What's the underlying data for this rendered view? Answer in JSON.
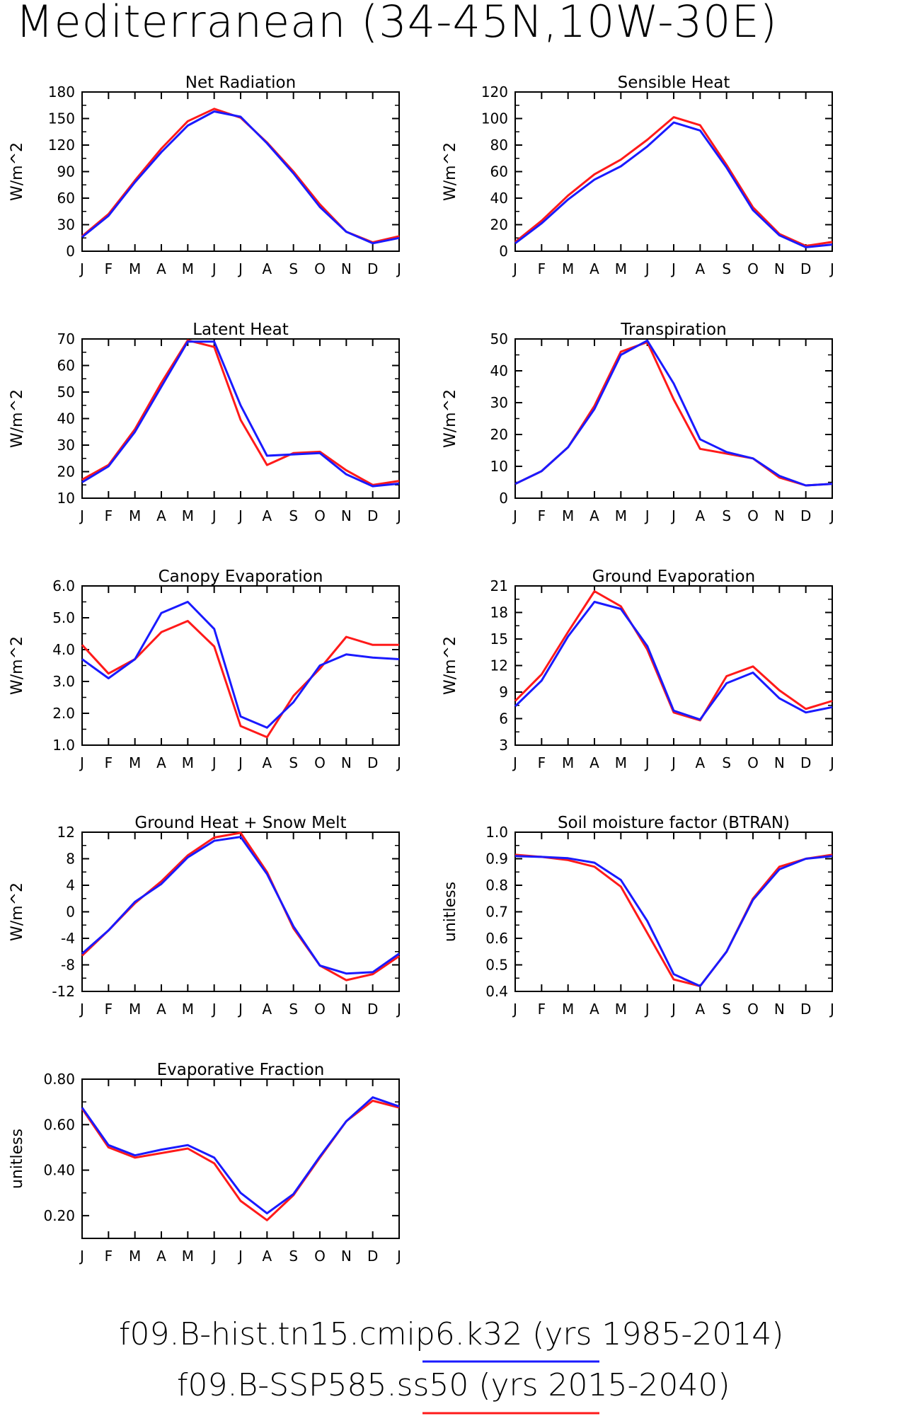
{
  "title": "Mediterranean (34-45N,10W-30E)",
  "months": [
    "J",
    "F",
    "M",
    "A",
    "M",
    "J",
    "J",
    "A",
    "S",
    "O",
    "N",
    "D",
    "J"
  ],
  "colors": {
    "hist": "#1a1aff",
    "ssp": "#ff1a1a"
  },
  "legend": [
    {
      "label": "f09.B-hist.tn15.cmip6.k32 (yrs 1985-2014)",
      "color": "#1a1aff"
    },
    {
      "label": "f09.B-SSP585.ss50 (yrs 2015-2040)",
      "color": "#ff1a1a"
    }
  ],
  "chart_data": [
    {
      "type": "line",
      "title": "Net Radiation",
      "ylabel": "W/m^2",
      "ylim": [
        0,
        180
      ],
      "yticks": [
        0,
        30,
        60,
        90,
        120,
        150,
        180
      ],
      "ydecimals": 0,
      "series": [
        {
          "name": "f09.B-hist.tn15.cmip6.k32 (yrs 1985-2014)",
          "key": "hist",
          "values": [
            16,
            40,
            78,
            112,
            142,
            158,
            152,
            122,
            88,
            50,
            22,
            9,
            15
          ]
        },
        {
          "name": "f09.B-SSP585.ss50 (yrs 2015-2040)",
          "key": "ssp",
          "values": [
            17,
            42,
            80,
            116,
            147,
            161,
            151,
            123,
            90,
            53,
            22,
            10,
            17
          ]
        }
      ]
    },
    {
      "type": "line",
      "title": "Sensible Heat",
      "ylabel": "W/m^2",
      "ylim": [
        0,
        120
      ],
      "yticks": [
        0,
        20,
        40,
        60,
        80,
        100,
        120
      ],
      "ydecimals": 0,
      "series": [
        {
          "name": "f09.B-hist.tn15.cmip6.k32 (yrs 1985-2014)",
          "key": "hist",
          "values": [
            6,
            21,
            39,
            54,
            64,
            79,
            97,
            91,
            63,
            31,
            12,
            3,
            5
          ]
        },
        {
          "name": "f09.B-SSP585.ss50 (yrs 2015-2040)",
          "key": "ssp",
          "values": [
            7,
            23,
            42,
            58,
            69,
            84,
            101,
            95,
            65,
            33,
            13,
            4,
            7
          ]
        }
      ]
    },
    {
      "type": "line",
      "title": "Latent Heat",
      "ylabel": "W/m^2",
      "ylim": [
        10,
        70
      ],
      "yticks": [
        10,
        20,
        30,
        40,
        50,
        60,
        70
      ],
      "ydecimals": 0,
      "series": [
        {
          "name": "f09.B-hist.tn15.cmip6.k32 (yrs 1985-2014)",
          "key": "hist",
          "values": [
            16,
            22,
            35,
            52,
            69,
            69,
            45,
            26,
            26.5,
            27,
            19,
            14.5,
            15.5
          ]
        },
        {
          "name": "f09.B-SSP585.ss50 (yrs 2015-2040)",
          "key": "ssp",
          "values": [
            17,
            22.5,
            36,
            53.5,
            69.5,
            67,
            39.5,
            22.5,
            27,
            27.5,
            20.5,
            15,
            16.5
          ]
        }
      ]
    },
    {
      "type": "line",
      "title": "Transpiration",
      "ylabel": "W/m^2",
      "ylim": [
        0,
        50
      ],
      "yticks": [
        0,
        10,
        20,
        30,
        40,
        50
      ],
      "ydecimals": 0,
      "series": [
        {
          "name": "f09.B-hist.tn15.cmip6.k32 (yrs 1985-2014)",
          "key": "hist",
          "values": [
            4.5,
            8.5,
            16,
            28,
            45,
            49.5,
            36,
            18.5,
            14.5,
            12.5,
            7,
            4,
            4.5
          ]
        },
        {
          "name": "f09.B-SSP585.ss50 (yrs 2015-2040)",
          "key": "ssp",
          "values": [
            4.5,
            8.5,
            16,
            29,
            46,
            49,
            31,
            15.5,
            14,
            12.5,
            6.5,
            4,
            4.5
          ]
        }
      ]
    },
    {
      "type": "line",
      "title": "Canopy Evaporation",
      "ylabel": "W/m^2",
      "ylim": [
        1.0,
        6.0
      ],
      "yticks": [
        1.0,
        2.0,
        3.0,
        4.0,
        5.0,
        6.0
      ],
      "ydecimals": 1,
      "series": [
        {
          "name": "f09.B-hist.tn15.cmip6.k32 (yrs 1985-2014)",
          "key": "hist",
          "values": [
            3.7,
            3.1,
            3.7,
            5.15,
            5.5,
            4.65,
            1.9,
            1.55,
            2.35,
            3.5,
            3.85,
            3.75,
            3.7
          ]
        },
        {
          "name": "f09.B-SSP585.ss50 (yrs 2015-2040)",
          "key": "ssp",
          "values": [
            4.15,
            3.25,
            3.7,
            4.55,
            4.9,
            4.1,
            1.6,
            1.25,
            2.55,
            3.4,
            4.4,
            4.15,
            4.15
          ]
        }
      ]
    },
    {
      "type": "line",
      "title": "Ground Evaporation",
      "ylabel": "W/m^2",
      "ylim": [
        3,
        21
      ],
      "yticks": [
        3,
        6,
        9,
        12,
        15,
        18,
        21
      ],
      "ydecimals": 0,
      "series": [
        {
          "name": "f09.B-hist.tn15.cmip6.k32 (yrs 1985-2014)",
          "key": "hist",
          "values": [
            7.4,
            10.3,
            15.3,
            19.2,
            18.4,
            14.2,
            6.9,
            5.9,
            10,
            11.2,
            8.3,
            6.7,
            7.3
          ]
        },
        {
          "name": "f09.B-SSP585.ss50 (yrs 2015-2040)",
          "key": "ssp",
          "values": [
            8,
            11,
            15.8,
            20.4,
            18.7,
            13.8,
            6.7,
            5.8,
            10.8,
            11.9,
            9.2,
            7.1,
            8
          ]
        }
      ]
    },
    {
      "type": "line",
      "title": "Ground Heat + Snow Melt",
      "ylabel": "W/m^2",
      "ylim": [
        -12,
        12
      ],
      "yticks": [
        -12,
        -8,
        -4,
        0,
        4,
        8,
        12
      ],
      "ydecimals": 0,
      "series": [
        {
          "name": "f09.B-hist.tn15.cmip6.k32 (yrs 1985-2014)",
          "key": "hist",
          "values": [
            -6.3,
            -2.8,
            1.5,
            4.2,
            8.2,
            10.7,
            11.3,
            5.7,
            -2.2,
            -8.1,
            -9.3,
            -9.1,
            -6.3
          ]
        },
        {
          "name": "f09.B-SSP585.ss50 (yrs 2015-2040)",
          "key": "ssp",
          "values": [
            -6.6,
            -2.8,
            1.3,
            4.6,
            8.5,
            11.2,
            11.9,
            6,
            -2.5,
            -8.1,
            -10.3,
            -9.4,
            -6.7
          ]
        }
      ]
    },
    {
      "type": "line",
      "title": "Soil moisture factor (BTRAN)",
      "ylabel": "unitless",
      "ylim": [
        0.4,
        1.0
      ],
      "yticks": [
        0.4,
        0.5,
        0.6,
        0.7,
        0.8,
        0.9,
        1.0
      ],
      "ydecimals": 1,
      "series": [
        {
          "name": "f09.B-hist.tn15.cmip6.k32 (yrs 1985-2014)",
          "key": "hist",
          "values": [
            0.91,
            0.907,
            0.902,
            0.885,
            0.82,
            0.665,
            0.465,
            0.42,
            0.55,
            0.745,
            0.86,
            0.9,
            0.91
          ]
        },
        {
          "name": "f09.B-SSP585.ss50 (yrs 2015-2040)",
          "key": "ssp",
          "values": [
            0.915,
            0.907,
            0.895,
            0.87,
            0.795,
            0.62,
            0.445,
            0.42,
            0.55,
            0.75,
            0.87,
            0.9,
            0.915
          ]
        }
      ]
    },
    {
      "type": "line",
      "title": "Evaporative Fraction",
      "ylabel": "unitless",
      "ylim": [
        0.1,
        0.8
      ],
      "yticks": [
        0.2,
        0.4,
        0.6,
        0.8
      ],
      "ydecimals": 2,
      "series": [
        {
          "name": "f09.B-hist.tn15.cmip6.k32 (yrs 1985-2014)",
          "key": "hist",
          "values": [
            0.675,
            0.51,
            0.465,
            0.49,
            0.51,
            0.455,
            0.3,
            0.21,
            0.295,
            0.46,
            0.615,
            0.72,
            0.68
          ]
        },
        {
          "name": "f09.B-SSP585.ss50 (yrs 2015-2040)",
          "key": "ssp",
          "values": [
            0.67,
            0.5,
            0.455,
            0.475,
            0.495,
            0.43,
            0.265,
            0.18,
            0.29,
            0.455,
            0.615,
            0.705,
            0.675
          ]
        }
      ]
    }
  ]
}
